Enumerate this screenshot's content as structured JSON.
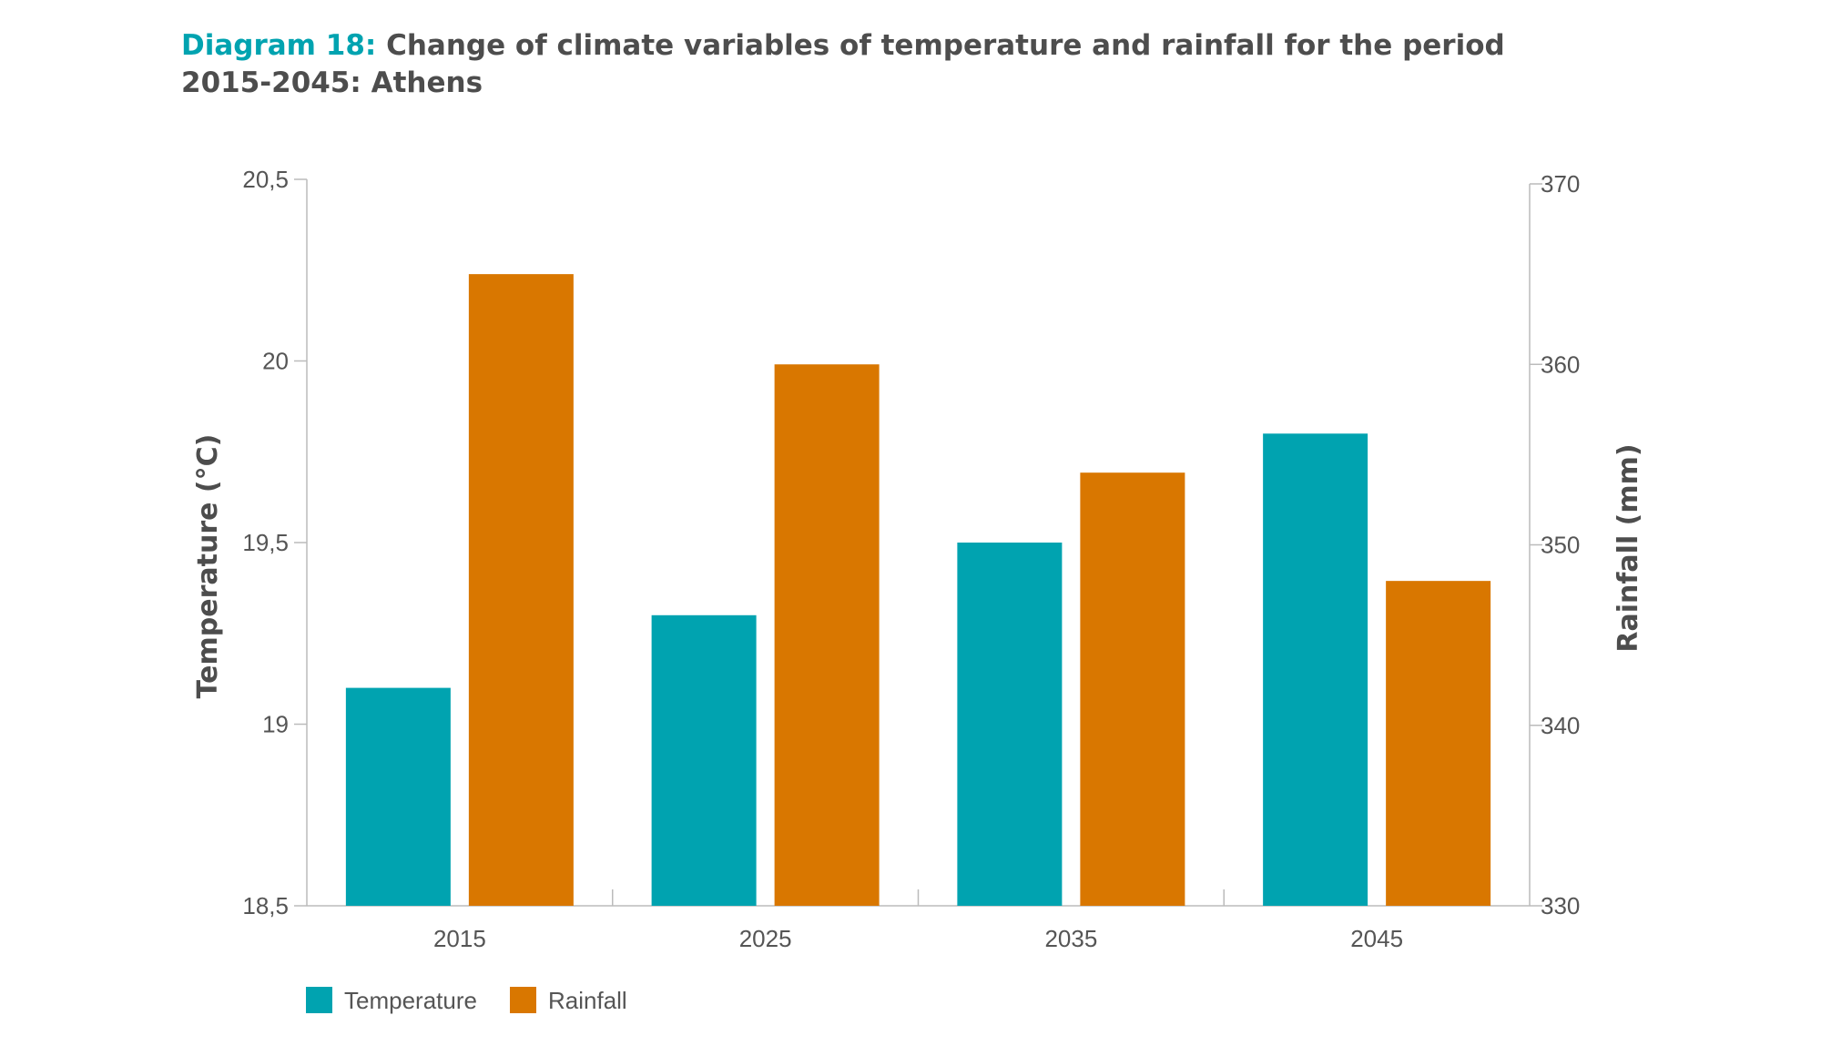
{
  "header": {
    "title_lead": "Diagram 18:",
    "title_line1": "Change of climate variables of temperature and rainfall for the period",
    "title_line2": "2015-2045: Athens"
  },
  "colors": {
    "temperature": "#00a3b0",
    "rainfall": "#d97700",
    "axis": "#bbbbbb"
  },
  "chart_data": {
    "type": "bar",
    "title": "Diagram 18: Change of climate variables of temperature and rainfall for the period 2015-2045: Athens",
    "categories": [
      "2015",
      "2025",
      "2035",
      "2045"
    ],
    "series": [
      {
        "name": "Temperature",
        "axis": "left",
        "values": [
          19.1,
          19.3,
          19.5,
          19.8
        ]
      },
      {
        "name": "Rainfall",
        "axis": "right",
        "values": [
          365,
          360,
          354,
          348
        ]
      }
    ],
    "ylabel": "Temperature (°C)",
    "ylim": [
      18.5,
      20.5
    ],
    "yticks": [
      "18,5",
      "19",
      "19,5",
      "20",
      "20,5"
    ],
    "y2label": "Rainfall (mm)",
    "y2lim": [
      330,
      370
    ],
    "y2ticks": [
      "330",
      "340",
      "350",
      "360",
      "370"
    ],
    "grid": false,
    "legend": "bottom-left"
  }
}
